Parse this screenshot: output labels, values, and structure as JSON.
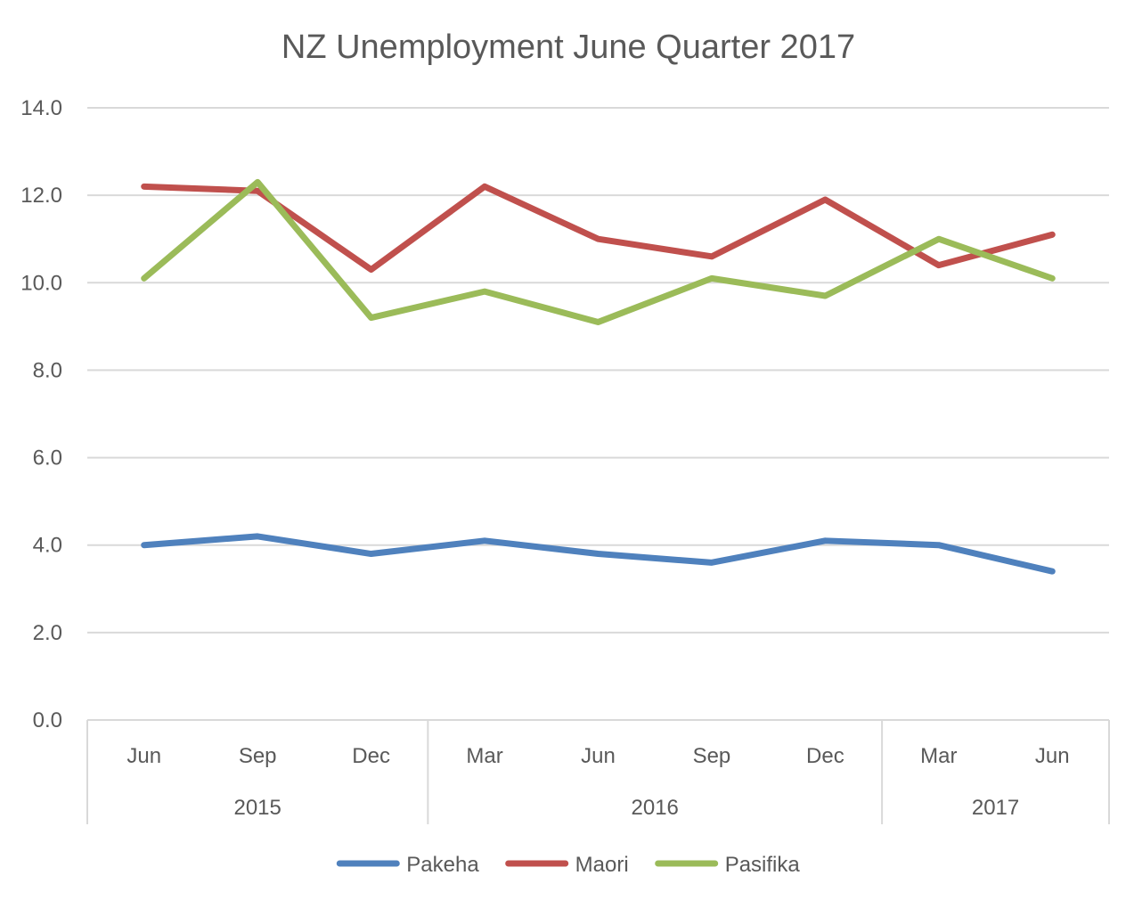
{
  "chart_data": {
    "type": "line",
    "title": "NZ Unemployment June Quarter 2017",
    "xlabel": "",
    "ylabel": "",
    "ylim": [
      0,
      14
    ],
    "yticks": [
      "0.0",
      "2.0",
      "4.0",
      "6.0",
      "8.0",
      "10.0",
      "12.0",
      "14.0"
    ],
    "categories": [
      "Jun",
      "Sep",
      "Dec",
      "Mar",
      "Jun",
      "Sep",
      "Dec",
      "Mar",
      "Jun"
    ],
    "year_groups": [
      {
        "label": "2015",
        "count": 3
      },
      {
        "label": "2016",
        "count": 4
      },
      {
        "label": "2017",
        "count": 2
      }
    ],
    "series": [
      {
        "name": "Pakeha",
        "color": "#4f81bd",
        "values": [
          4.0,
          4.2,
          3.8,
          4.1,
          3.8,
          3.6,
          4.1,
          4.0,
          3.4
        ]
      },
      {
        "name": "Maori",
        "color": "#c0504d",
        "values": [
          12.2,
          12.1,
          10.3,
          12.2,
          11.0,
          10.6,
          11.9,
          10.4,
          11.1
        ]
      },
      {
        "name": "Pasifika",
        "color": "#9bbb59",
        "values": [
          10.1,
          12.3,
          9.2,
          9.8,
          9.1,
          10.1,
          9.7,
          11.0,
          10.1
        ]
      }
    ],
    "grid": true,
    "legend_position": "bottom"
  }
}
